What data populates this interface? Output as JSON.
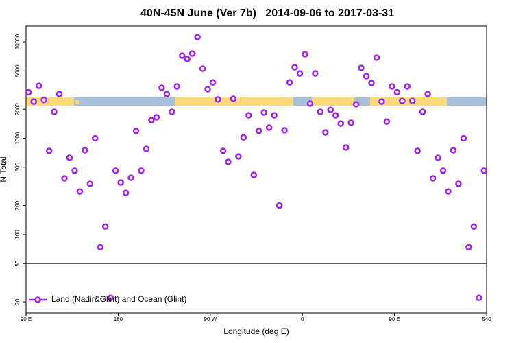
{
  "chart_data": {
    "type": "scatter",
    "title": "40N-45N June (Ver 7b)   2014-09-06 to 2017-03-31",
    "x_label": "Longitude (deg E)",
    "y_label": "N Total",
    "x": [
      92.5,
      97.5,
      102.5,
      107.5,
      112.5,
      117.5,
      122.5,
      127.5,
      132.5,
      137.5,
      142.5,
      147.5,
      152.5,
      157.5,
      162.5,
      167.5,
      172.5,
      177.5,
      182.5,
      187.5,
      192.5,
      197.5,
      202.5,
      207.5,
      212.5,
      217.5,
      222.5,
      227.5,
      232.5,
      237.5,
      242.5,
      247.5,
      252.5,
      257.5,
      262.5,
      267.5,
      272.5,
      277.5,
      282.5,
      287.5,
      292.5,
      297.5,
      302.5,
      307.5,
      312.5,
      317.5,
      322.5,
      327.5,
      332.5,
      337.5,
      342.5,
      347.5,
      352.5,
      357.5,
      362.5,
      367.5,
      372.5,
      377.5,
      382.5,
      387.5,
      392.5,
      397.5,
      402.5,
      407.5,
      412.5,
      417.5,
      422.5,
      427.5,
      432.5,
      437.5,
      442.5,
      447.5,
      452.5,
      457.5,
      462.5,
      467.5,
      472.5,
      477.5,
      482.5,
      487.5,
      492.5,
      497.5,
      502.5,
      507.5,
      512.5,
      517.5,
      522.5,
      527.5,
      532.5,
      537.5
    ],
    "series": [
      {
        "name": "Land (Nadir&Glint) and Ocean (Glint)",
        "color": "#a020f0",
        "values": [
          3000,
          2400,
          3500,
          2500,
          740,
          1880,
          2880,
          383,
          626,
          460,
          280,
          750,
          336,
          1000,
          74,
          121,
          22,
          460,
          347,
          271,
          389,
          1190,
          460,
          775,
          1540,
          1650,
          3340,
          2880,
          1880,
          3450,
          7210,
          6640,
          7570,
          11200,
          5280,
          3230,
          3800,
          2530,
          740,
          568,
          2570,
          647,
          1020,
          1730,
          416,
          1190,
          1850,
          1290,
          1730,
          200,
          1210,
          3800,
          5460,
          4710,
          7450,
          2290,
          4710,
          1880,
          1150,
          1970,
          1730,
          1420,
          801,
          1450,
          2250,
          5370,
          4410,
          3740,
          6870,
          2400,
          1490,
          3450,
          3000,
          2440,
          3450,
          2440,
          740,
          1880,
          2880,
          383,
          626,
          460,
          280,
          750,
          336,
          1000,
          74,
          121,
          22,
          460
        ]
      }
    ],
    "xlim": [
      90,
      540
    ],
    "ylim": [
      15.4,
      14600
    ],
    "y_scale": "log",
    "xticks": [
      {
        "value": 90,
        "label": "90 E"
      },
      180,
      {
        "value": 270,
        "label": "90 W"
      },
      {
        "value": 360,
        "label": "0"
      },
      {
        "value": 450,
        "label": "90 E"
      },
      540
    ],
    "yticks": [
      20,
      50,
      100,
      200,
      500,
      1000,
      2000,
      5000,
      10000
    ],
    "reference_line": 50,
    "legend": "bottom-left"
  }
}
